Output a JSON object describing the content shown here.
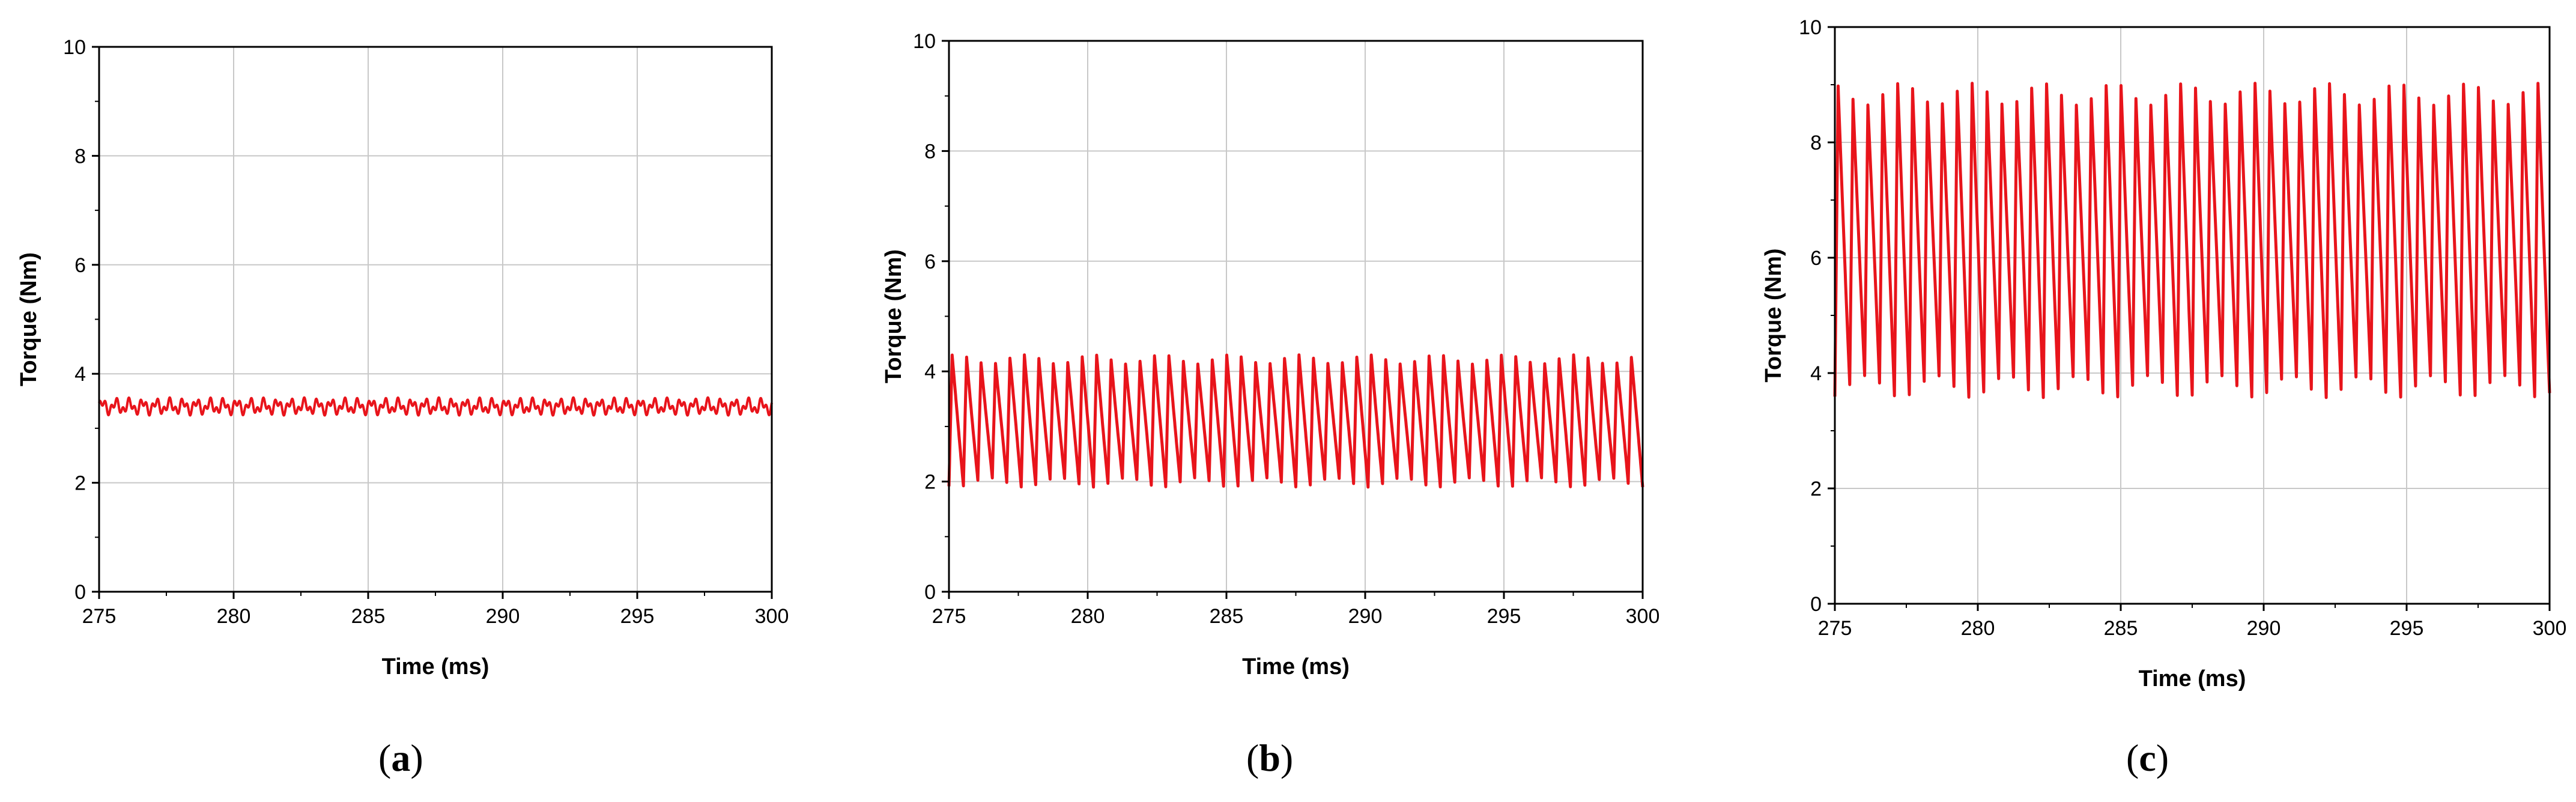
{
  "chart_data": [
    {
      "type": "line",
      "panel": "a",
      "xlabel": "Time (ms)",
      "ylabel": "Torque (Nm)",
      "xlim": [
        275,
        300
      ],
      "ylim": [
        0,
        10
      ],
      "xticks": [
        "275",
        "280",
        "285",
        "290",
        "295",
        "300"
      ],
      "yticks": [
        "0",
        "2",
        "4",
        "6",
        "8",
        "10"
      ],
      "grid": true,
      "series": [
        {
          "color": "#e8141b",
          "mean": 3.4,
          "min": 3.25,
          "max": 3.58,
          "cycles": 50,
          "description_values": {
            "x_start": 275,
            "x_end": 300
          }
        }
      ]
    },
    {
      "type": "line",
      "panel": "b",
      "xlabel": "Time (ms)",
      "ylabel": "Torque (Nm)",
      "xlim": [
        275,
        300
      ],
      "ylim": [
        0,
        10
      ],
      "xticks": [
        "275",
        "280",
        "285",
        "290",
        "295",
        "300"
      ],
      "yticks": [
        "0",
        "2",
        "4",
        "6",
        "8",
        "10"
      ],
      "grid": true,
      "series": [
        {
          "color": "#e8141b",
          "mean": 3.1,
          "min": 1.9,
          "max": 4.3,
          "cycles": 48,
          "description_values": {
            "x_start": 275,
            "x_end": 300
          }
        }
      ]
    },
    {
      "type": "line",
      "panel": "c",
      "xlabel": "Time (ms)",
      "ylabel": "Torque (Nm)",
      "xlim": [
        275,
        300
      ],
      "ylim": [
        0,
        10
      ],
      "xticks": [
        "275",
        "280",
        "285",
        "290",
        "295",
        "300"
      ],
      "yticks": [
        "0",
        "2",
        "4",
        "6",
        "8",
        "10"
      ],
      "grid": true,
      "series": [
        {
          "color": "#e8141b",
          "mean": 6.3,
          "min": 3.55,
          "max": 9.0,
          "cycles": 48,
          "description_values": {
            "x_start": 275,
            "x_end": 300
          }
        }
      ]
    }
  ],
  "captions": [
    "(a)",
    "(b)",
    "(c)"
  ],
  "caption_letters": [
    "a",
    "b",
    "c"
  ]
}
